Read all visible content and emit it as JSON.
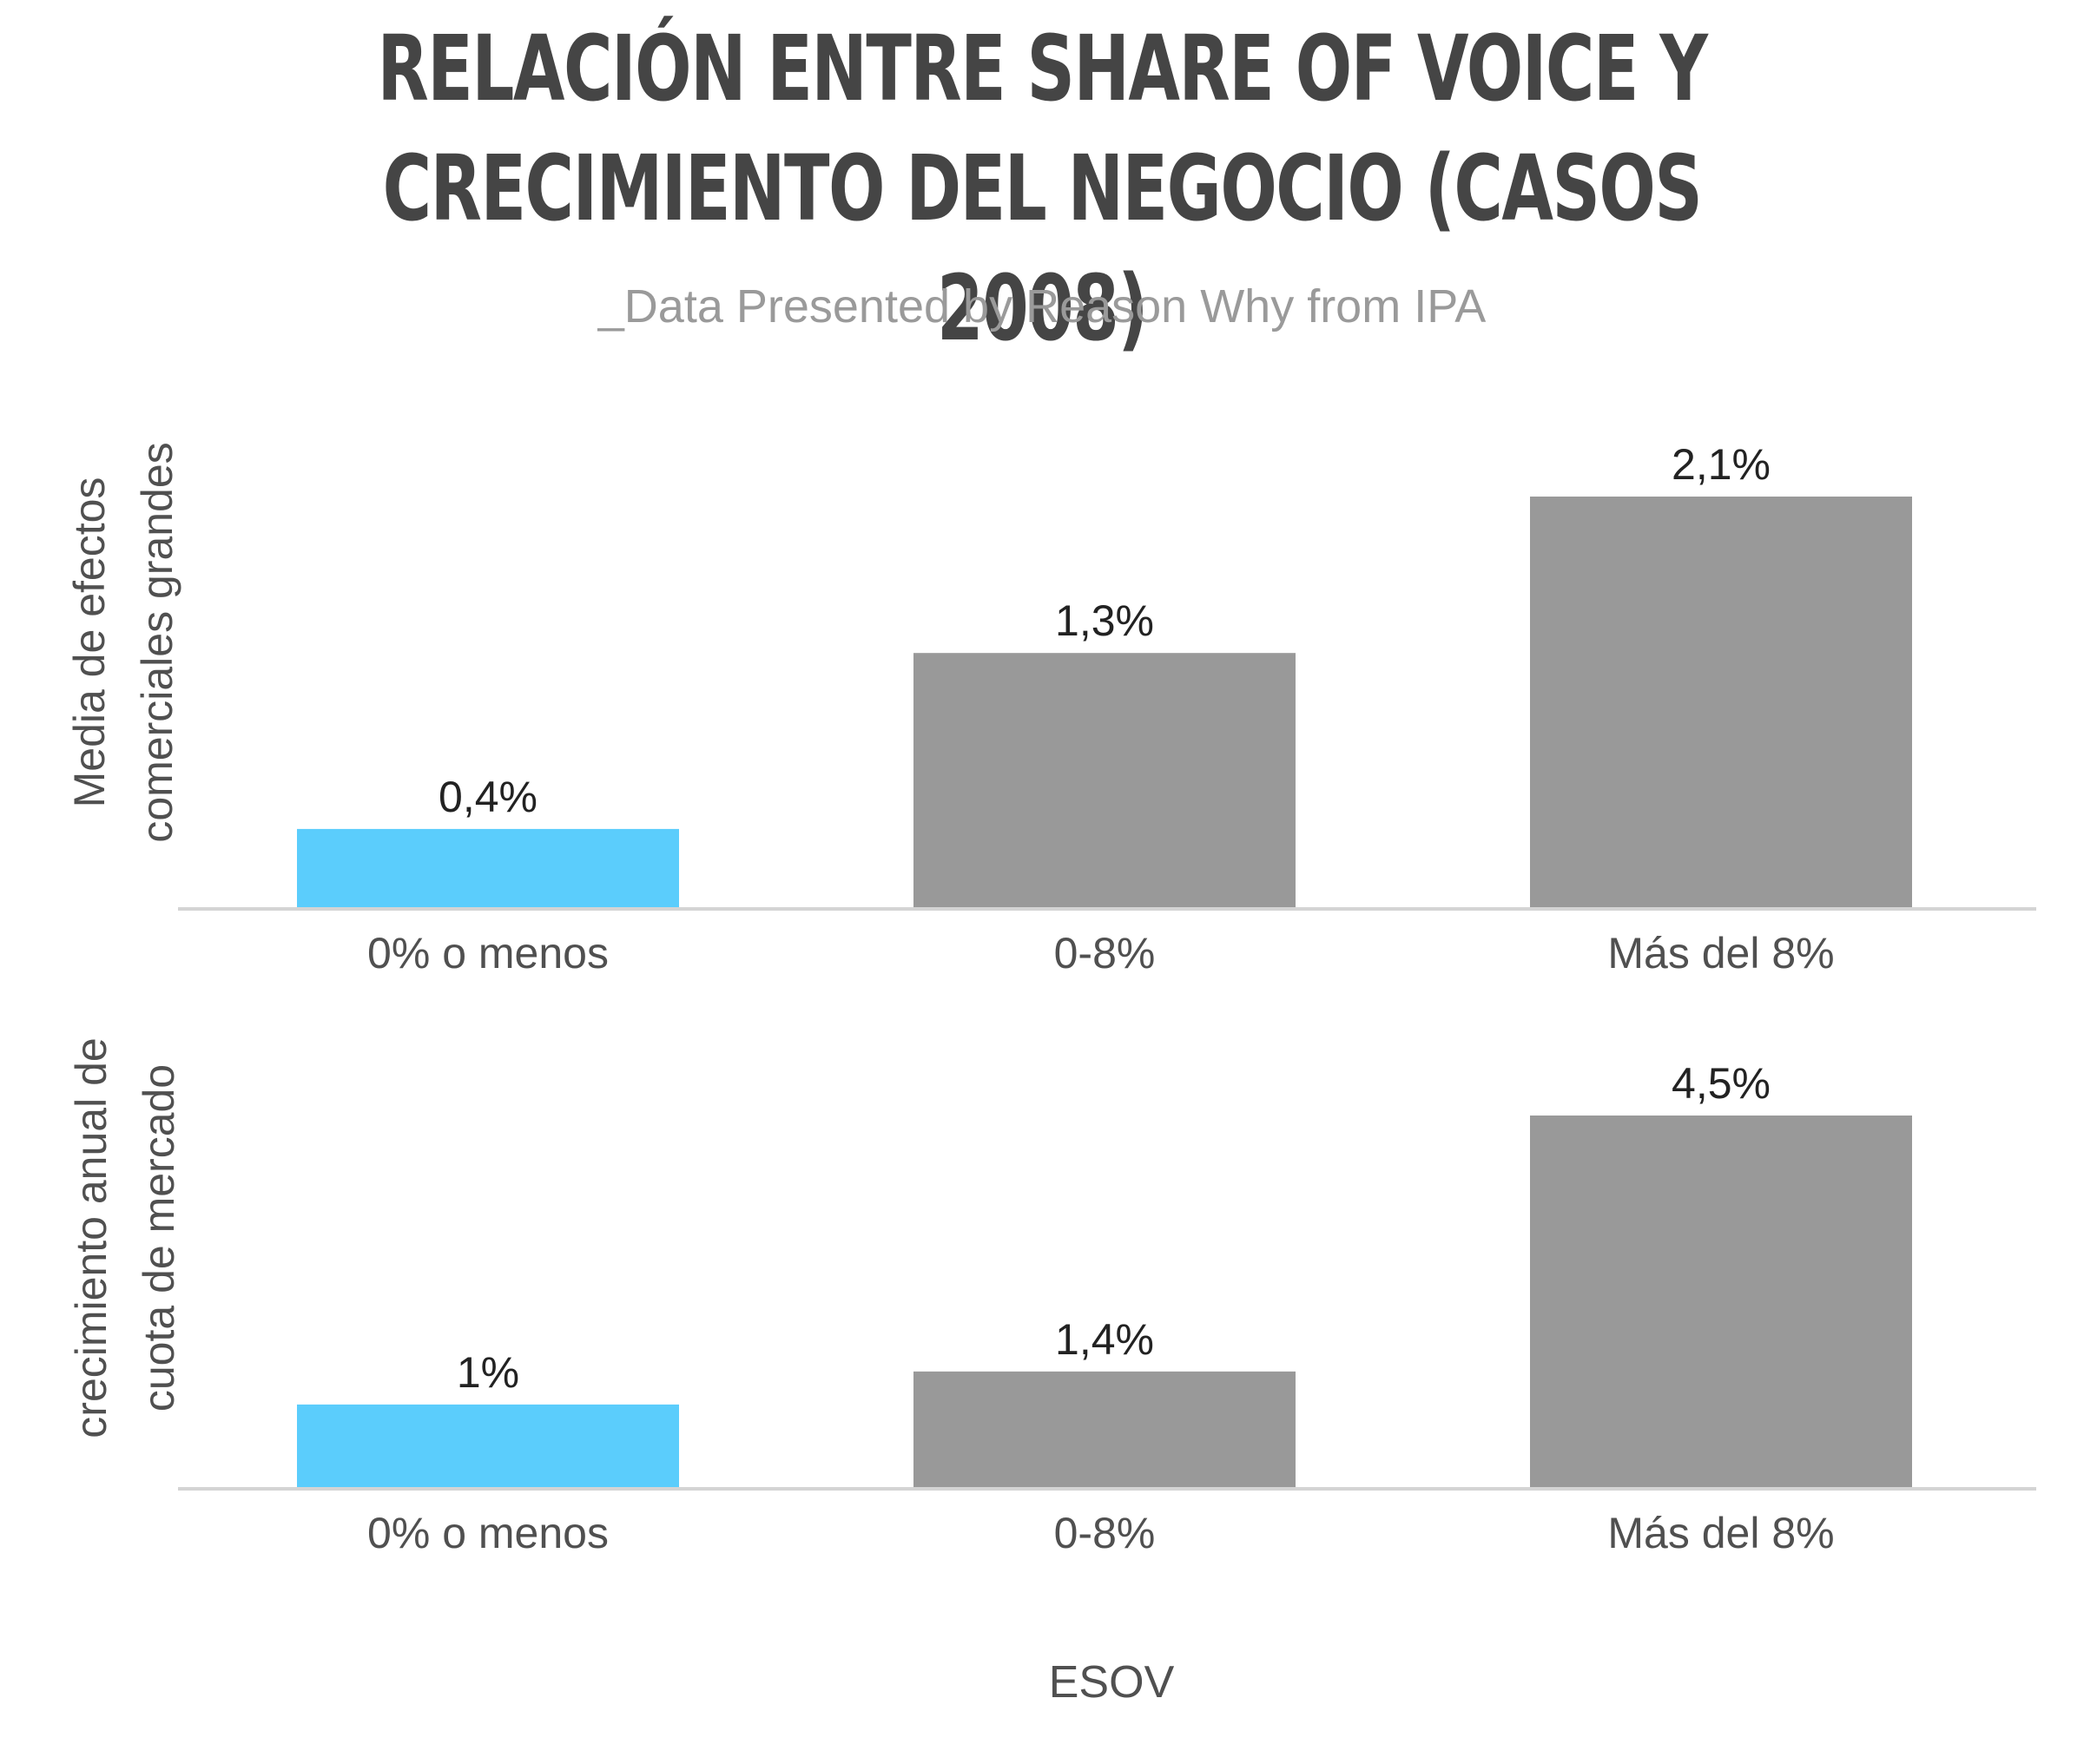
{
  "header": {
    "title_line1": "RELACIÓN ENTRE SHARE OF VOICE Y",
    "title_line2": "CRECIMIENTO DEL NEGOCIO (CASOS 2008)",
    "subtitle": "_Data Presented by Reason Why from IPA"
  },
  "chart_data": [
    {
      "type": "bar",
      "categories": [
        "0% o menos",
        "0-8%",
        "Más del 8%"
      ],
      "values": [
        0.4,
        1.3,
        2.1
      ],
      "data_labels": [
        "0,4%",
        "1,3%",
        "2,1%"
      ],
      "bar_colors": [
        "#5bcdfc",
        "#999999",
        "#999999"
      ],
      "ylabel_lines": [
        "Media de efectos",
        "comerciales grandes"
      ],
      "ylim": [
        0,
        2.1
      ],
      "grid": false,
      "legend": "none"
    },
    {
      "type": "bar",
      "categories": [
        "0% o menos",
        "0-8%",
        "Más del 8%"
      ],
      "values": [
        1,
        1.4,
        4.5
      ],
      "data_labels": [
        "1%",
        "1,4%",
        "4,5%"
      ],
      "bar_colors": [
        "#5bcdfc",
        "#999999",
        "#999999"
      ],
      "ylabel_lines": [
        "crecimiento anual de",
        "cuota de mercado"
      ],
      "ylim": [
        0,
        4.5
      ],
      "grid": false,
      "legend": "none"
    }
  ],
  "xlabel": "ESOV"
}
